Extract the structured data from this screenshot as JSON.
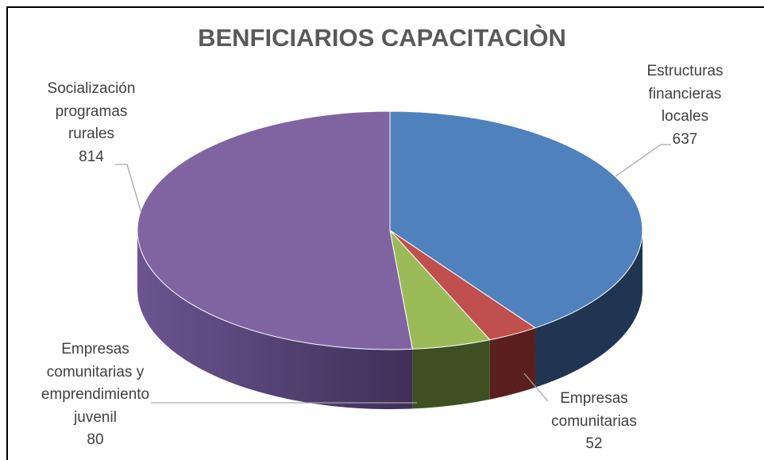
{
  "chart_data": {
    "type": "pie3d",
    "title": "BENFICIARIOS CAPACITACIÒN",
    "categories": [
      "Estructuras financieras locales",
      "Empresas comunitarias",
      "Empresas comunitarias y emprendimiento juvenil",
      "Socialización programas rurales"
    ],
    "values": [
      637,
      52,
      80,
      814
    ],
    "colors": [
      "#4f81bd",
      "#c0504d",
      "#9bbb59",
      "#8064a2"
    ]
  }
}
